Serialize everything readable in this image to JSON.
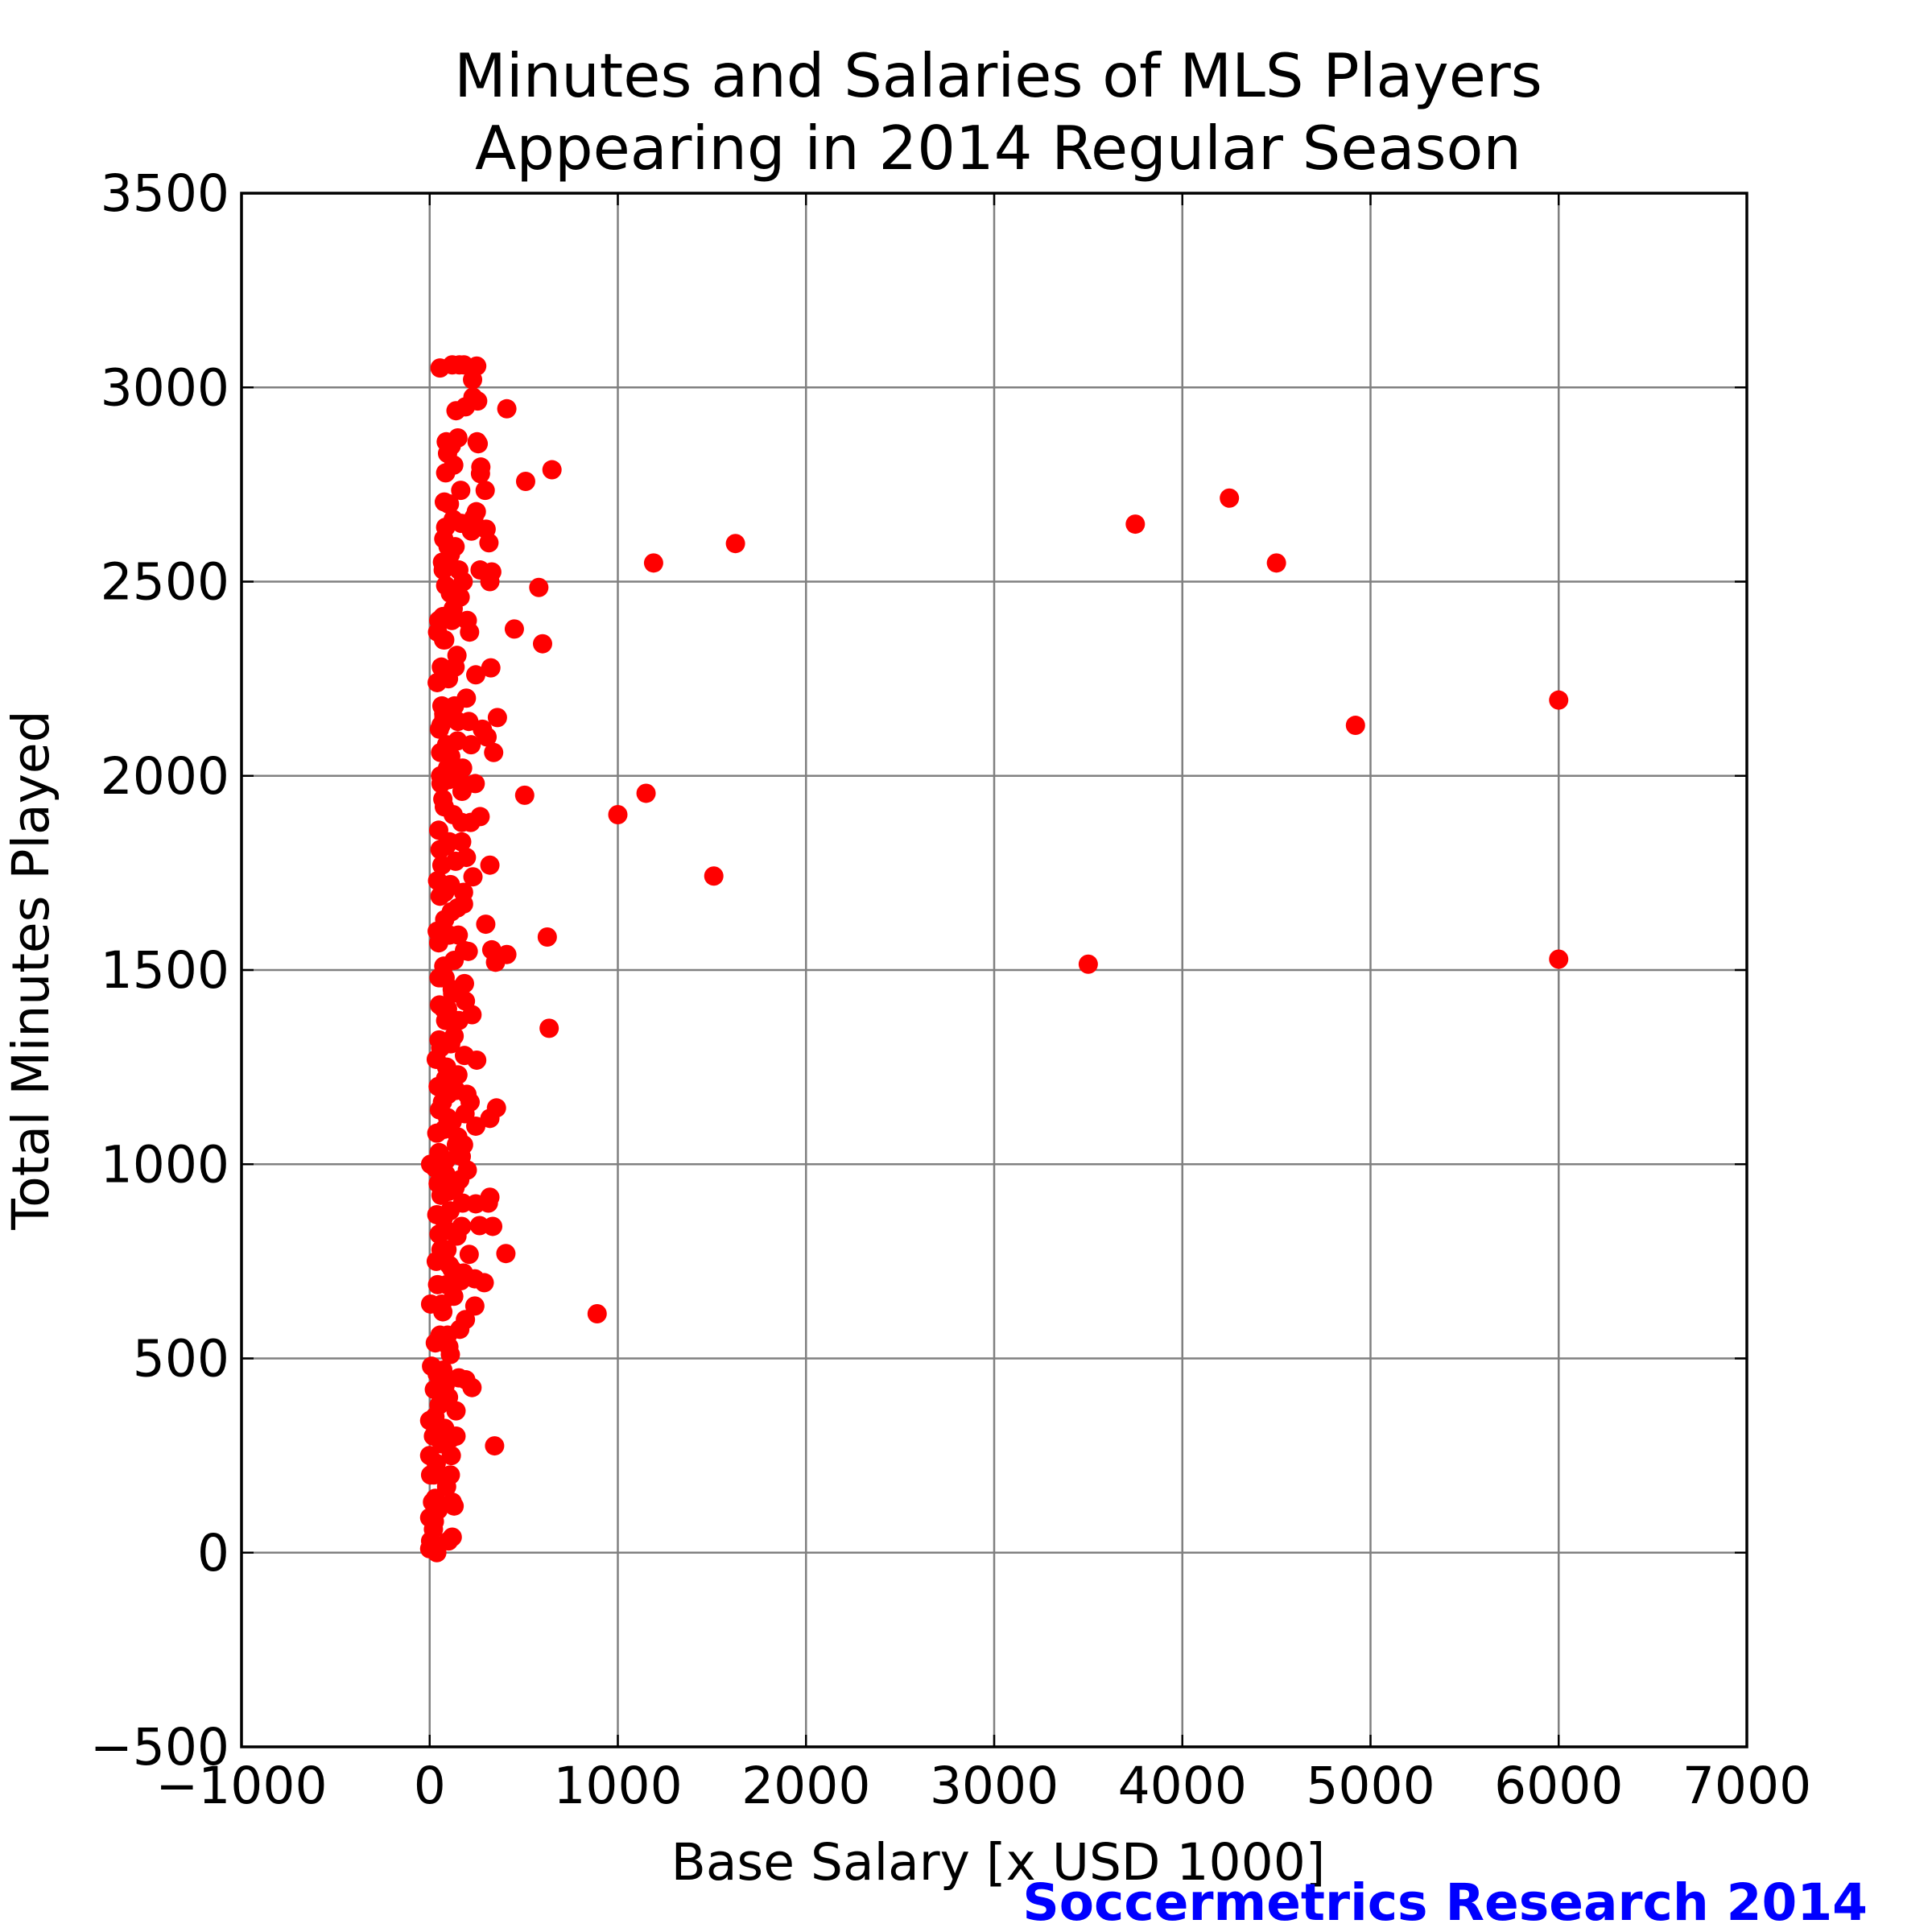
{
  "chart_data": {
    "type": "scatter",
    "title": [
      "Minutes and Salaries of MLS Players",
      "Appearing in 2014 Regular Season"
    ],
    "xlabel": "Base Salary [x USD 1000]",
    "ylabel": "Total Minutes Played",
    "xlim": [
      -1000,
      7000
    ],
    "ylim": [
      -500,
      3500
    ],
    "xticks": [
      -1000,
      0,
      1000,
      2000,
      3000,
      4000,
      5000,
      6000,
      7000
    ],
    "xtick_labels": [
      "−1000",
      "0",
      "1000",
      "2000",
      "3000",
      "4000",
      "5000",
      "6000",
      "7000"
    ],
    "yticks": [
      -500,
      0,
      500,
      1000,
      1500,
      2000,
      2500,
      3000,
      3500
    ],
    "ytick_labels": [
      "−500",
      "0",
      "500",
      "1000",
      "1500",
      "2000",
      "2500",
      "3000",
      "3500"
    ],
    "grid": true,
    "marker_color": "#ff0000",
    "credit": "Soccermetrics Research 2014",
    "credit_color": "#0000ff",
    "points": [
      [
        6000,
        2195
      ],
      [
        6000,
        1528
      ],
      [
        4920,
        2130
      ],
      [
        4500,
        2548
      ],
      [
        4250,
        2715
      ],
      [
        3750,
        2648
      ],
      [
        3500,
        1515
      ],
      [
        1625,
        2598
      ],
      [
        1510,
        1742
      ],
      [
        1190,
        2548
      ],
      [
        1150,
        1955
      ],
      [
        1000,
        1900
      ],
      [
        890,
        615
      ],
      [
        650,
        2788
      ],
      [
        635,
        1350
      ],
      [
        625,
        1585
      ],
      [
        600,
        2340
      ],
      [
        580,
        2485
      ],
      [
        510,
        2758
      ],
      [
        505,
        1950
      ],
      [
        450,
        2378
      ],
      [
        410,
        2945
      ],
      [
        410,
        1540
      ],
      [
        405,
        770
      ],
      [
        360,
        2150
      ],
      [
        355,
        1145
      ],
      [
        350,
        1520
      ],
      [
        345,
        275
      ],
      [
        340,
        2060
      ],
      [
        335,
        840
      ],
      [
        330,
        1552
      ],
      [
        330,
        2525
      ],
      [
        325,
        2278
      ],
      [
        320,
        2500
      ],
      [
        320,
        1770
      ],
      [
        320,
        915
      ],
      [
        320,
        1118
      ],
      [
        315,
        2600
      ],
      [
        312,
        900
      ],
      [
        305,
        2100
      ],
      [
        300,
        2635
      ],
      [
        298,
        1618
      ],
      [
        295,
        2735
      ],
      [
        290,
        695
      ],
      [
        280,
        2120
      ],
      [
        272,
        2795
      ],
      [
        270,
        2778
      ],
      [
        268,
        1895
      ],
      [
        268,
        2530
      ],
      [
        265,
        842
      ],
      [
        258,
        2855
      ],
      [
        255,
        2965
      ],
      [
        252,
        2860
      ],
      [
        250,
        3055
      ],
      [
        250,
        1268
      ],
      [
        248,
        2680
      ],
      [
        245,
        1098
      ],
      [
        245,
        898
      ],
      [
        245,
        2260
      ],
      [
        242,
        1980
      ],
      [
        240,
        635
      ],
      [
        240,
        705
      ],
      [
        235,
        2665
      ],
      [
        230,
        2975
      ],
      [
        230,
        1740
      ],
      [
        228,
        3020
      ],
      [
        225,
        1385
      ],
      [
        225,
        425
      ],
      [
        222,
        2630
      ],
      [
        220,
        2080
      ],
      [
        218,
        1880
      ],
      [
        215,
        1160
      ],
      [
        212,
        2370
      ],
      [
        210,
        768
      ],
      [
        208,
        2140
      ],
      [
        205,
        1548
      ],
      [
        200,
        2400
      ],
      [
        200,
        985
      ],
      [
        198,
        1180
      ],
      [
        195,
        1790
      ],
      [
        195,
        2200
      ],
      [
        192,
        445
      ],
      [
        190,
        2950
      ],
      [
        190,
        1420
      ],
      [
        188,
        1130
      ],
      [
        185,
        1465
      ],
      [
        182,
        3058
      ],
      [
        180,
        1670
      ],
      [
        178,
        2500
      ],
      [
        175,
        2020
      ],
      [
        172,
        1960
      ],
      [
        170,
        1880
      ],
      [
        168,
        2650
      ],
      [
        168,
        1020
      ],
      [
        165,
        2735
      ],
      [
        162,
        2460
      ],
      [
        160,
        575
      ],
      [
        158,
        3058
      ],
      [
        155,
        2530
      ],
      [
        155,
        1370
      ],
      [
        152,
        1590
      ],
      [
        150,
        2870
      ],
      [
        150,
        1230
      ],
      [
        148,
        2090
      ],
      [
        148,
        1660
      ],
      [
        145,
        2310
      ],
      [
        145,
        815
      ],
      [
        142,
        1050
      ],
      [
        140,
        2940
      ],
      [
        140,
        365
      ],
      [
        138,
        1780
      ],
      [
        135,
        2590
      ],
      [
        135,
        940
      ],
      [
        132,
        2180
      ],
      [
        130,
        1525
      ],
      [
        128,
        2800
      ],
      [
        128,
        660
      ],
      [
        125,
        2660
      ],
      [
        125,
        1900
      ],
      [
        122,
        1440
      ],
      [
        120,
        3058
      ],
      [
        120,
        1110
      ],
      [
        118,
        2400
      ],
      [
        118,
        730
      ],
      [
        115,
        2850
      ],
      [
        115,
        295
      ],
      [
        112,
        2050
      ],
      [
        112,
        1310
      ],
      [
        110,
        2470
      ],
      [
        110,
        1720
      ],
      [
        108,
        880
      ],
      [
        105,
        2700
      ],
      [
        105,
        1590
      ],
      [
        102,
        530
      ],
      [
        100,
        2250
      ],
      [
        100,
        1990
      ],
      [
        98,
        1180
      ],
      [
        98,
        2590
      ],
      [
        95,
        2830
      ],
      [
        95,
        1400
      ],
      [
        92,
        780
      ],
      [
        90,
        2080
      ],
      [
        90,
        1250
      ],
      [
        88,
        2860
      ],
      [
        88,
        1820
      ],
      [
        85,
        2640
      ],
      [
        85,
        975
      ],
      [
        82,
        430
      ],
      [
        80,
        2350
      ],
      [
        80,
        1630
      ],
      [
        78,
        1090
      ],
      [
        78,
        2705
      ],
      [
        75,
        2160
      ],
      [
        75,
        1400
      ],
      [
        72,
        860
      ],
      [
        70,
        1940
      ],
      [
        70,
        620
      ],
      [
        68,
        2550
      ],
      [
        68,
        1160
      ],
      [
        65,
        1770
      ],
      [
        65,
        280
      ],
      [
        62,
        2280
      ],
      [
        62,
        1480
      ],
      [
        60,
        920
      ],
      [
        58,
        2060
      ],
      [
        58,
        1300
      ],
      [
        55,
        3050
      ],
      [
        55,
        1690
      ],
      [
        55,
        560
      ],
      [
        52,
        2120
      ],
      [
        52,
        1410
      ],
      [
        50,
        1030
      ],
      [
        50,
        820
      ],
      [
        50,
        380
      ],
      [
        48,
        2400
      ],
      [
        48,
        1860
      ],
      [
        48,
        1570
      ],
      [
        45,
        1200
      ],
      [
        45,
        950
      ],
      [
        45,
        110
      ],
      [
        42,
        2370
      ],
      [
        42,
        1730
      ],
      [
        42,
        690
      ],
      [
        40,
        2240
      ],
      [
        40,
        1600
      ],
      [
        40,
        460
      ],
      [
        38,
        1080
      ],
      [
        38,
        870
      ],
      [
        38,
        0
      ],
      [
        35,
        1270
      ],
      [
        35,
        750
      ],
      [
        35,
        230
      ],
      [
        32,
        20
      ],
      [
        30,
        990
      ],
      [
        30,
        540
      ],
      [
        30,
        140
      ],
      [
        28,
        350
      ],
      [
        25,
        80
      ],
      [
        25,
        420
      ],
      [
        22,
        200
      ],
      [
        20,
        60
      ],
      [
        20,
        300
      ],
      [
        15,
        130
      ],
      [
        10,
        480
      ],
      [
        5,
        640
      ],
      [
        5,
        1000
      ],
      [
        5,
        200
      ],
      [
        5,
        30
      ],
      [
        0,
        10
      ],
      [
        0,
        90
      ],
      [
        0,
        250
      ],
      [
        0,
        340
      ],
      [
        60,
        1980
      ],
      [
        60,
        2130
      ],
      [
        70,
        2410
      ],
      [
        85,
        2490
      ],
      [
        95,
        2020
      ],
      [
        105,
        1830
      ],
      [
        115,
        1650
      ],
      [
        120,
        1450
      ],
      [
        130,
        1330
      ],
      [
        140,
        1190
      ],
      [
        150,
        1070
      ],
      [
        160,
        960
      ],
      [
        170,
        840
      ],
      [
        180,
        720
      ],
      [
        190,
        600
      ],
      [
        75,
        1510
      ],
      [
        85,
        1370
      ],
      [
        95,
        1120
      ],
      [
        100,
        930
      ],
      [
        105,
        740
      ],
      [
        110,
        510
      ],
      [
        115,
        250
      ],
      [
        120,
        130
      ],
      [
        100,
        30
      ],
      [
        90,
        170
      ],
      [
        80,
        320
      ],
      [
        70,
        470
      ],
      [
        65,
        640
      ],
      [
        60,
        780
      ],
      [
        55,
        960
      ],
      [
        52,
        1140
      ],
      [
        50,
        1320
      ],
      [
        50,
        1480
      ],
      [
        55,
        1810
      ],
      [
        58,
        2000
      ],
      [
        65,
        2180
      ],
      [
        75,
        2610
      ],
      [
        85,
        2780
      ],
      [
        100,
        2700
      ],
      [
        110,
        2570
      ],
      [
        125,
        2430
      ],
      [
        135,
        2280
      ],
      [
        150,
        2140
      ],
      [
        160,
        1990
      ],
      [
        170,
        1830
      ],
      [
        180,
        1700
      ],
      [
        185,
        1550
      ],
      [
        185,
        1280
      ],
      [
        180,
        1050
      ],
      [
        175,
        900
      ],
      [
        165,
        700
      ],
      [
        155,
        450
      ],
      [
        140,
        300
      ],
      [
        130,
        120
      ],
      [
        120,
        40
      ],
      [
        110,
        200
      ],
      [
        100,
        400
      ],
      [
        95,
        560
      ],
      [
        90,
        690
      ],
      [
        88,
        830
      ],
      [
        86,
        1010
      ],
      [
        84,
        1220
      ],
      [
        82,
        1480
      ],
      [
        80,
        1700
      ],
      [
        78,
        1920
      ],
      [
        76,
        2150
      ],
      [
        74,
        2350
      ],
      [
        72,
        2530
      ]
    ]
  }
}
